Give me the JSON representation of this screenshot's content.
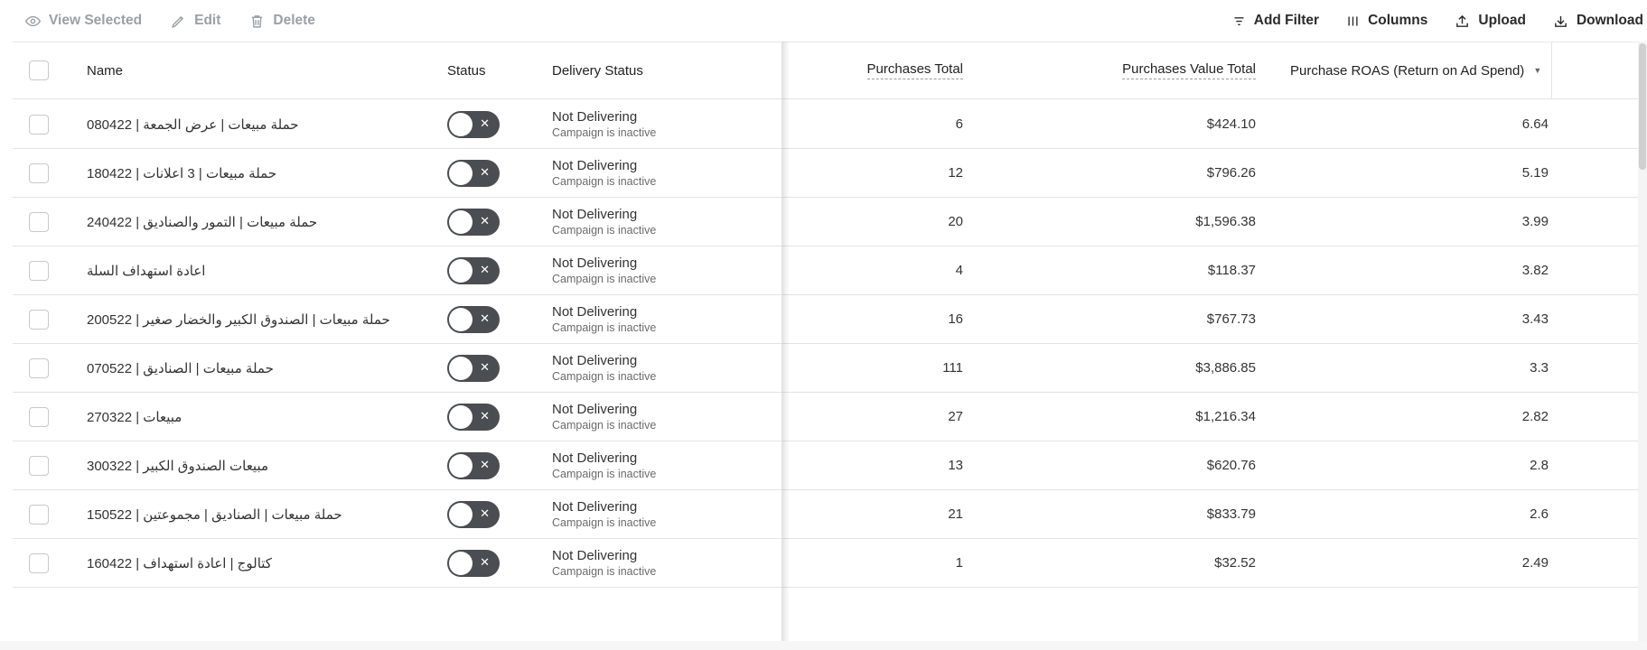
{
  "toolbar": {
    "left": [
      {
        "label": "View Selected",
        "icon": "eye-icon"
      },
      {
        "label": "Edit",
        "icon": "pencil-icon"
      },
      {
        "label": "Delete",
        "icon": "trash-icon"
      }
    ],
    "right": [
      {
        "label": "Add Filter",
        "icon": "filter-icon"
      },
      {
        "label": "Columns",
        "icon": "columns-icon"
      },
      {
        "label": "Upload",
        "icon": "upload-icon"
      },
      {
        "label": "Download",
        "icon": "download-icon"
      }
    ]
  },
  "columns": {
    "name": "Name",
    "status": "Status",
    "delivery": "Delivery Status",
    "purchases": "Purchases Total",
    "value": "Purchases Value Total",
    "roas": "Purchase ROAS (Return on Ad Spend)",
    "sort_icon": "chevron-down-icon"
  },
  "rows": [
    {
      "name": "حملة مبيعات | عرض الجمعة | 080422",
      "delivery": "Not Delivering",
      "delivery_sub": "Campaign is inactive",
      "purchases": "6",
      "value": "$424.10",
      "roas": "6.64",
      "active": false
    },
    {
      "name": "حملة مبيعات | 3 اعلانات | 180422",
      "delivery": "Not Delivering",
      "delivery_sub": "Campaign is inactive",
      "purchases": "12",
      "value": "$796.26",
      "roas": "5.19",
      "active": false
    },
    {
      "name": "حملة مبيعات | التمور والصناديق | 240422",
      "delivery": "Not Delivering",
      "delivery_sub": "Campaign is inactive",
      "purchases": "20",
      "value": "$1,596.38",
      "roas": "3.99",
      "active": false
    },
    {
      "name": "اعادة استهداف السلة",
      "delivery": "Not Delivering",
      "delivery_sub": "Campaign is inactive",
      "purchases": "4",
      "value": "$118.37",
      "roas": "3.82",
      "active": false
    },
    {
      "name": "حملة مبيعات | الصندوق الكبير والخضار صغير | 200522",
      "delivery": "Not Delivering",
      "delivery_sub": "Campaign is inactive",
      "purchases": "16",
      "value": "$767.73",
      "roas": "3.43",
      "active": false
    },
    {
      "name": "حملة مبيعات | الصناديق | 070522",
      "delivery": "Not Delivering",
      "delivery_sub": "Campaign is inactive",
      "purchases": "111",
      "value": "$3,886.85",
      "roas": "3.3",
      "active": false
    },
    {
      "name": "مبيعات | 270322",
      "delivery": "Not Delivering",
      "delivery_sub": "Campaign is inactive",
      "purchases": "27",
      "value": "$1,216.34",
      "roas": "2.82",
      "active": false
    },
    {
      "name": "مبيعات الصندوق الكبير | 300322",
      "delivery": "Not Delivering",
      "delivery_sub": "Campaign is inactive",
      "purchases": "13",
      "value": "$620.76",
      "roas": "2.8",
      "active": false
    },
    {
      "name": "حملة مبيعات | الصناديق | مجموعتين | 150522",
      "delivery": "Not Delivering",
      "delivery_sub": "Campaign is inactive",
      "purchases": "21",
      "value": "$833.79",
      "roas": "2.6",
      "active": false
    },
    {
      "name": "كتالوج | اعادة استهداف | 160422",
      "delivery": "Not Delivering",
      "delivery_sub": "Campaign is inactive",
      "purchases": "1",
      "value": "$32.52",
      "roas": "2.49",
      "active": false
    }
  ],
  "colors": {
    "toggle_off": "#4a4d52",
    "toolbar_disabled": "#9aa0a6",
    "toolbar_enabled": "#2b2b2b"
  }
}
